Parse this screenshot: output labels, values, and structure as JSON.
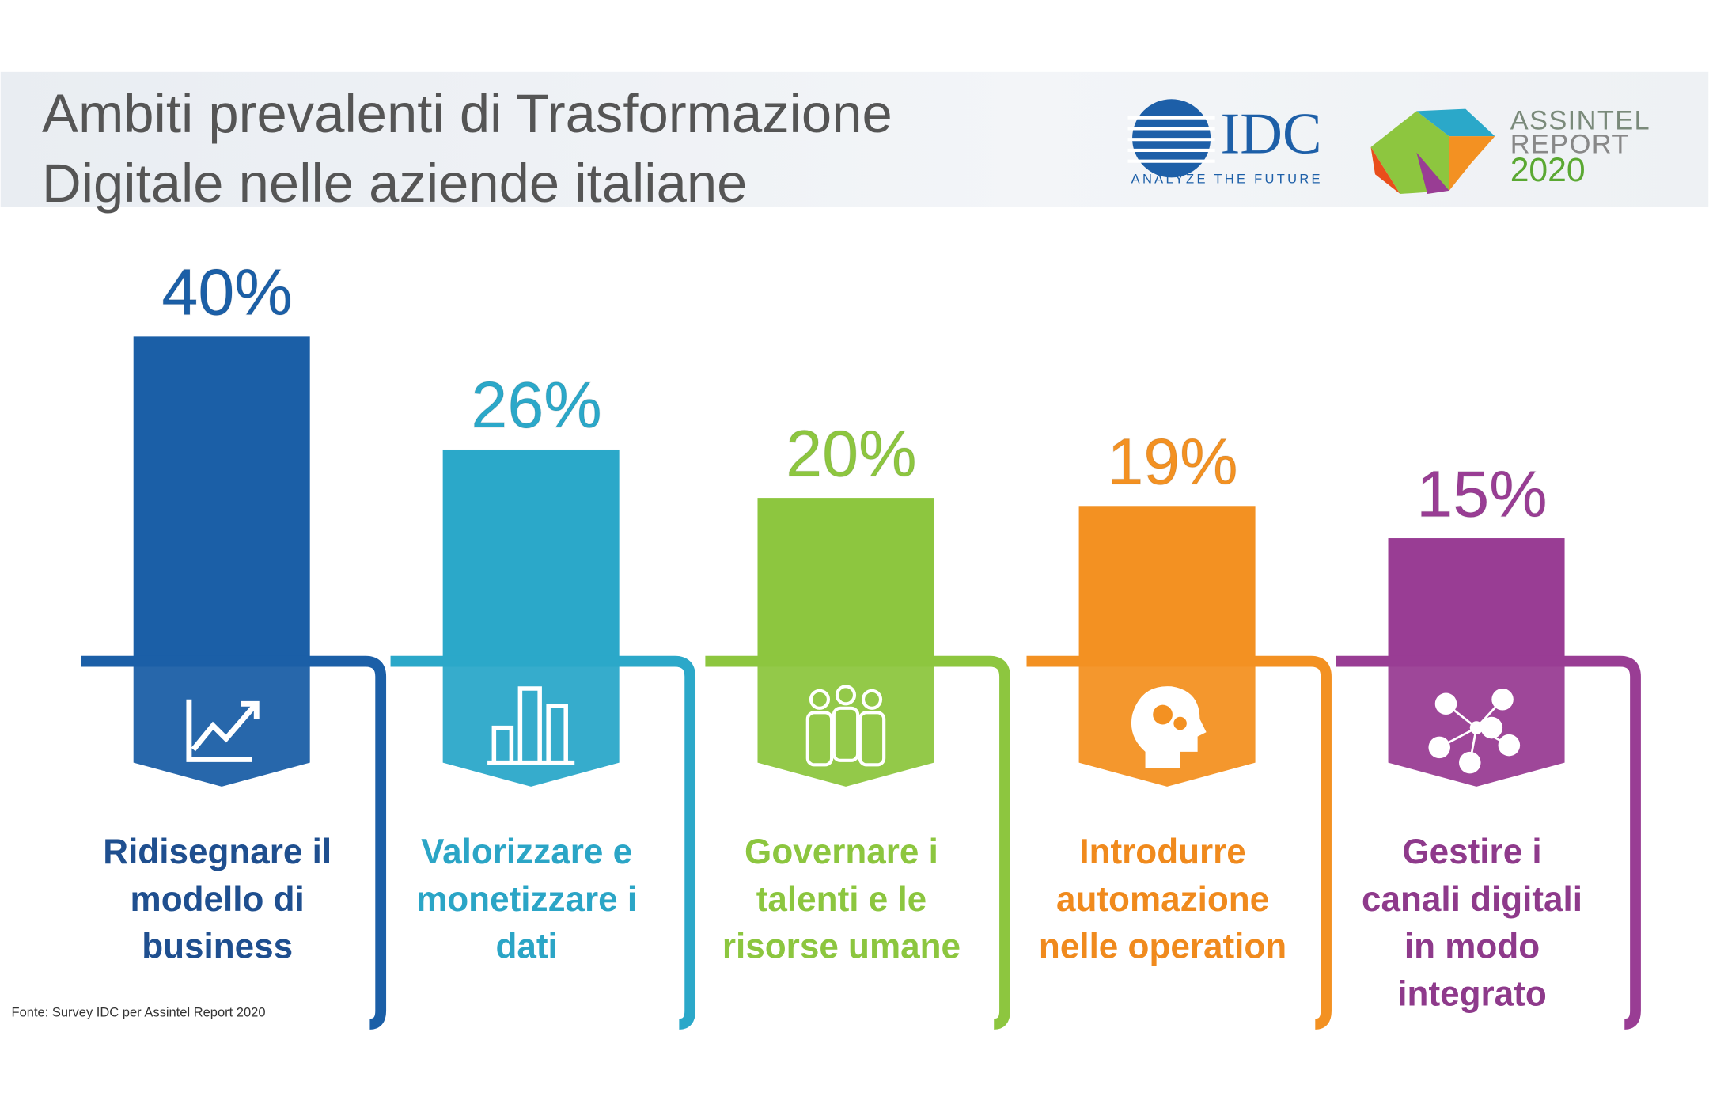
{
  "header": {
    "title": [
      "Ambiti prevalenti di Trasformazione",
      "Digitale nelle aziende italiane"
    ],
    "idc_logo": {
      "name": "IDC",
      "tagline": "ANALYZE THE FUTURE"
    },
    "assintel_logo": [
      "ASSINTEL",
      "REPORT",
      "2020"
    ]
  },
  "chart_data": {
    "type": "bar",
    "categories": [
      [
        "Ridisegnare il",
        "modello di",
        "business"
      ],
      [
        "Valorizzare e",
        "monetizzare i",
        "dati"
      ],
      [
        "Governare i",
        "talenti e le",
        "risorse umane"
      ],
      [
        "Introdurre",
        "automazione",
        "nelle operation"
      ],
      [
        "Gestire i",
        "canali digitali",
        "in modo",
        "integrato"
      ]
    ],
    "values": [
      40,
      26,
      20,
      19,
      15
    ],
    "value_labels": [
      "40%",
      "26%",
      "20%",
      "19%",
      "15%"
    ],
    "colors": [
      "#1b5fa7",
      "#2ba8c9",
      "#8dc63f",
      "#f39122",
      "#993d94"
    ],
    "label_colors": [
      "#1f4f8f",
      "#2ba5c6",
      "#8cc63f",
      "#f08a1d",
      "#8e3a8b"
    ],
    "source": "Fonte: Survey IDC per Assintel Report 2020"
  }
}
